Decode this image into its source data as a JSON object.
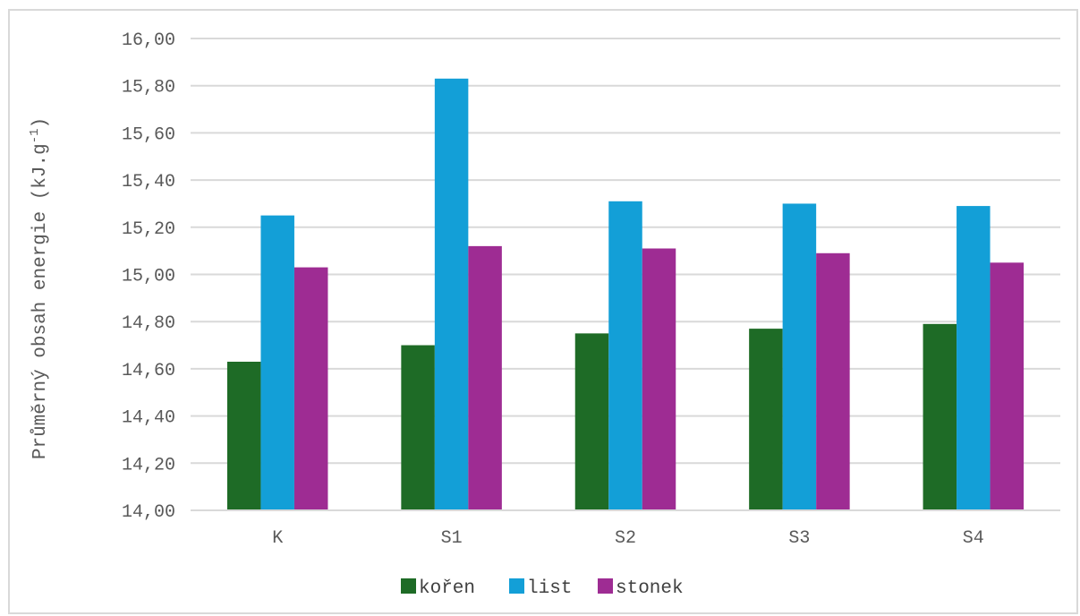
{
  "chart_data": {
    "type": "bar",
    "title": "",
    "xlabel": "",
    "ylabel": {
      "main": "Průměrný obsah energie (kJ.g",
      "superscript": "-1",
      "closing": ")"
    },
    "categories": [
      "K",
      "S1",
      "S2",
      "S3",
      "S4"
    ],
    "series": [
      {
        "name": "kořen",
        "color": "#1e6b26",
        "values": [
          14.63,
          14.7,
          14.75,
          14.77,
          14.79
        ]
      },
      {
        "name": "list",
        "color": "#139fd7",
        "values": [
          15.25,
          15.83,
          15.31,
          15.3,
          15.29
        ]
      },
      {
        "name": "stonek",
        "color": "#9e2c93",
        "values": [
          15.03,
          15.12,
          15.11,
          15.09,
          15.05
        ]
      }
    ],
    "ylim": [
      14.0,
      16.0
    ],
    "yticks": [
      "14,00",
      "14,20",
      "14,40",
      "14,60",
      "14,80",
      "15,00",
      "15,20",
      "15,40",
      "15,60",
      "15,80",
      "16,00"
    ],
    "grid": true,
    "legend_position": "bottom"
  }
}
